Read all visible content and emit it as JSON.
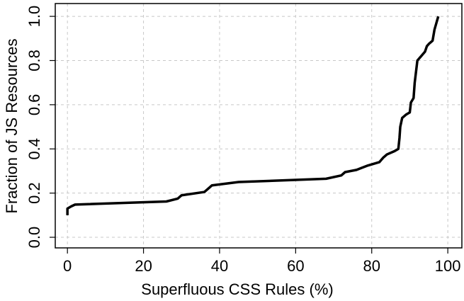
{
  "chart_data": {
    "type": "line",
    "xlabel": "Superfluous CSS Rules (%)",
    "ylabel": "Fraction of JS Resources",
    "x": [
      0,
      0,
      1,
      2,
      26,
      29,
      30,
      36,
      37,
      38,
      45,
      68,
      72,
      73,
      76,
      79,
      82,
      83,
      84,
      86,
      87,
      87.3,
      87.5,
      88,
      89,
      90,
      90.3,
      91,
      91.3,
      92,
      93,
      94,
      94.5,
      95,
      96,
      96.5,
      97,
      97.5
    ],
    "series": [
      {
        "color": "#000000",
        "values": [
          0.1,
          0.13,
          0.14,
          0.148,
          0.162,
          0.175,
          0.19,
          0.205,
          0.22,
          0.235,
          0.25,
          0.265,
          0.28,
          0.295,
          0.305,
          0.325,
          0.34,
          0.36,
          0.375,
          0.39,
          0.4,
          0.45,
          0.5,
          0.54,
          0.555,
          0.565,
          0.61,
          0.63,
          0.7,
          0.8,
          0.82,
          0.84,
          0.865,
          0.875,
          0.89,
          0.94,
          0.97,
          1.0
        ]
      }
    ],
    "xlim": [
      -3.2,
      103.7
    ],
    "ylim": [
      -0.048,
      1.058
    ],
    "xticks": [
      0,
      20,
      40,
      60,
      80,
      100
    ],
    "yticks": [
      {
        "value": 0,
        "label": "0.0"
      },
      0.2,
      0.4,
      0.6,
      0.8,
      {
        "value": 1,
        "label": "1.0"
      }
    ],
    "grid": true
  }
}
